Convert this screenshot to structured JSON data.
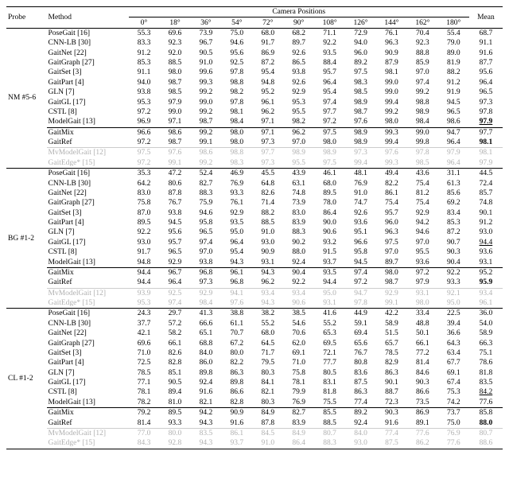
{
  "header": {
    "probe": "Probe",
    "method": "Method",
    "camera_header": "Camera Positions",
    "angles": [
      "0°",
      "18°",
      "36°",
      "54°",
      "72°",
      "90°",
      "108°",
      "126°",
      "144°",
      "162°",
      "180°"
    ],
    "mean": "Mean"
  },
  "groups": [
    {
      "probe_label": "NM #5-6",
      "blocks": [
        {
          "rows": [
            {
              "method": "PoseGait [16]",
              "vals": [
                "55.3",
                "69.6",
                "73.9",
                "75.0",
                "68.0",
                "68.2",
                "71.1",
                "72.9",
                "76.1",
                "70.4",
                "55.4"
              ],
              "mean": "68.7"
            },
            {
              "method": "CNN-LB [30]",
              "vals": [
                "83.3",
                "92.3",
                "96.7",
                "94.6",
                "91.7",
                "89.7",
                "92.2",
                "94.0",
                "96.3",
                "92.3",
                "79.0"
              ],
              "mean": "91.1"
            },
            {
              "method": "GaitNet [22]",
              "vals": [
                "91.2",
                "92.0",
                "90.5",
                "95.6",
                "86.9",
                "92.6",
                "93.5",
                "96.0",
                "90.9",
                "88.8",
                "89.0"
              ],
              "mean": "91.6"
            },
            {
              "method": "GaitGraph [27]",
              "vals": [
                "85.3",
                "88.5",
                "91.0",
                "92.5",
                "87.2",
                "86.5",
                "88.4",
                "89.2",
                "87.9",
                "85.9",
                "81.9"
              ],
              "mean": "87.7"
            },
            {
              "method": "GaitSet [3]",
              "vals": [
                "91.1",
                "98.0",
                "99.6",
                "97.8",
                "95.4",
                "93.8",
                "95.7",
                "97.5",
                "98.1",
                "97.0",
                "88.2"
              ],
              "mean": "95.6"
            },
            {
              "method": "GaitPart [4]",
              "vals": [
                "94.0",
                "98.7",
                "99.3",
                "98.8",
                "94.8",
                "92.6",
                "96.4",
                "98.3",
                "99.0",
                "97.4",
                "91.2"
              ],
              "mean": "96.4"
            },
            {
              "method": "GLN [7]",
              "vals": [
                "93.8",
                "98.5",
                "99.2",
                "98.2",
                "95.2",
                "92.9",
                "95.4",
                "98.5",
                "99.0",
                "99.2",
                "91.9"
              ],
              "mean": "96.5"
            },
            {
              "method": "GaitGL [17]",
              "vals": [
                "95.3",
                "97.9",
                "99.0",
                "97.8",
                "96.1",
                "95.3",
                "97.4",
                "98.9",
                "99.4",
                "98.8",
                "94.5"
              ],
              "mean": "97.3"
            },
            {
              "method": "CSTL [8]",
              "vals": [
                "97.2",
                "99.0",
                "99.2",
                "98.1",
                "96.2",
                "95.5",
                "97.7",
                "98.7",
                "99.2",
                "98.9",
                "96.5"
              ],
              "mean": "97.8"
            },
            {
              "method": "ModelGait [13]",
              "vals": [
                "96.9",
                "97.1",
                "98.7",
                "98.4",
                "97.1",
                "98.2",
                "97.2",
                "97.6",
                "98.0",
                "98.4",
                "98.6"
              ],
              "mean": "97.9",
              "mean_style": "bold underline"
            }
          ]
        },
        {
          "rows": [
            {
              "method": "GaitMix",
              "vals": [
                "96.6",
                "98.6",
                "99.2",
                "98.0",
                "97.1",
                "96.2",
                "97.5",
                "98.9",
                "99.3",
                "99.0",
                "94.7"
              ],
              "mean": "97.7"
            },
            {
              "method": "GaitRef",
              "vals": [
                "97.2",
                "98.7",
                "99.1",
                "98.0",
                "97.3",
                "97.0",
                "98.0",
                "98.9",
                "99.4",
                "99.8",
                "96.4"
              ],
              "mean": "98.1",
              "mean_style": "bold"
            }
          ]
        },
        {
          "gray": true,
          "rows": [
            {
              "method": "MvModelGait [12]",
              "vals": [
                "97.5",
                "97.6",
                "98.6",
                "98.8",
                "97.7",
                "98.9",
                "98.9",
                "97.3",
                "97.6",
                "97.8",
                "97.9"
              ],
              "mean": "98.1"
            },
            {
              "method": "GaitEdge* [15]",
              "vals": [
                "97.2",
                "99.1",
                "99.2",
                "98.3",
                "97.3",
                "95.5",
                "97.5",
                "99.4",
                "99.3",
                "98.5",
                "96.4"
              ],
              "mean": "97.9"
            }
          ]
        }
      ]
    },
    {
      "probe_label": "BG #1-2",
      "blocks": [
        {
          "rows": [
            {
              "method": "PoseGait [16]",
              "vals": [
                "35.3",
                "47.2",
                "52.4",
                "46.9",
                "45.5",
                "43.9",
                "46.1",
                "48.1",
                "49.4",
                "43.6",
                "31.1"
              ],
              "mean": "44.5"
            },
            {
              "method": "CNN-LB [30]",
              "vals": [
                "64.2",
                "80.6",
                "82.7",
                "76.9",
                "64.8",
                "63.1",
                "68.0",
                "76.9",
                "82.2",
                "75.4",
                "61.3"
              ],
              "mean": "72.4"
            },
            {
              "method": "GaitNet [22]",
              "vals": [
                "83.0",
                "87.8",
                "88.3",
                "93.3",
                "82.6",
                "74.8",
                "89.5",
                "91.0",
                "86.1",
                "81.2",
                "85.6"
              ],
              "mean": "85.7"
            },
            {
              "method": "GaitGraph [27]",
              "vals": [
                "75.8",
                "76.7",
                "75.9",
                "76.1",
                "71.4",
                "73.9",
                "78.0",
                "74.7",
                "75.4",
                "75.4",
                "69.2"
              ],
              "mean": "74.8"
            },
            {
              "method": "GaitSet [3]",
              "vals": [
                "87.0",
                "93.8",
                "94.6",
                "92.9",
                "88.2",
                "83.0",
                "86.4",
                "92.6",
                "95.7",
                "92.9",
                "83.4"
              ],
              "mean": "90.1"
            },
            {
              "method": "GaitPart [4]",
              "vals": [
                "89.5",
                "94.5",
                "95.8",
                "93.5",
                "88.5",
                "83.9",
                "90.0",
                "93.6",
                "96.0",
                "94.2",
                "85.3"
              ],
              "mean": "91.2"
            },
            {
              "method": "GLN [7]",
              "vals": [
                "92.2",
                "95.6",
                "96.5",
                "95.0",
                "91.0",
                "88.3",
                "90.6",
                "95.1",
                "96.3",
                "94.6",
                "87.2"
              ],
              "mean": "93.0"
            },
            {
              "method": "GaitGL [17]",
              "vals": [
                "93.0",
                "95.7",
                "97.4",
                "96.4",
                "93.0",
                "90.2",
                "93.2",
                "96.6",
                "97.5",
                "97.0",
                "90.7"
              ],
              "mean": "94.4",
              "mean_style": "underline"
            },
            {
              "method": "CSTL [8]",
              "vals": [
                "91.7",
                "96.5",
                "97.0",
                "95.4",
                "90.9",
                "88.0",
                "91.5",
                "95.8",
                "97.0",
                "95.5",
                "90.3"
              ],
              "mean": "93.6"
            },
            {
              "method": "ModelGait [13]",
              "vals": [
                "94.8",
                "92.9",
                "93.8",
                "94.3",
                "93.1",
                "92.4",
                "93.7",
                "94.5",
                "89.7",
                "93.6",
                "90.4"
              ],
              "mean": "93.1"
            }
          ]
        },
        {
          "rows": [
            {
              "method": "GaitMix",
              "vals": [
                "94.4",
                "96.7",
                "96.8",
                "96.1",
                "94.3",
                "90.4",
                "93.5",
                "97.4",
                "98.0",
                "97.2",
                "92.2"
              ],
              "mean": "95.2"
            },
            {
              "method": "GaitRef",
              "vals": [
                "94.4",
                "96.4",
                "97.3",
                "96.8",
                "96.2",
                "92.2",
                "94.4",
                "97.2",
                "98.7",
                "97.9",
                "93.3"
              ],
              "mean": "95.9",
              "mean_style": "bold"
            }
          ]
        },
        {
          "gray": true,
          "rows": [
            {
              "method": "MvModelGait [12]",
              "vals": [
                "93.9",
                "92.5",
                "92.9",
                "94.1",
                "93.4",
                "93.4",
                "95.0",
                "94.7",
                "92.9",
                "93.1",
                "92.1"
              ],
              "mean": "93.4"
            },
            {
              "method": "GaitEdge* [15]",
              "vals": [
                "95.3",
                "97.4",
                "98.4",
                "97.6",
                "94.3",
                "90.6",
                "93.1",
                "97.8",
                "99.1",
                "98.0",
                "95.0"
              ],
              "mean": "96.1"
            }
          ]
        }
      ]
    },
    {
      "probe_label": "CL #1-2",
      "blocks": [
        {
          "rows": [
            {
              "method": "PoseGait [16]",
              "vals": [
                "24.3",
                "29.7",
                "41.3",
                "38.8",
                "38.2",
                "38.5",
                "41.6",
                "44.9",
                "42.2",
                "33.4",
                "22.5"
              ],
              "mean": "36.0"
            },
            {
              "method": "CNN-LB [30]",
              "vals": [
                "37.7",
                "57.2",
                "66.6",
                "61.1",
                "55.2",
                "54.6",
                "55.2",
                "59.1",
                "58.9",
                "48.8",
                "39.4"
              ],
              "mean": "54.0"
            },
            {
              "method": "GaitNet [22]",
              "vals": [
                "42.1",
                "58.2",
                "65.1",
                "70.7",
                "68.0",
                "70.6",
                "65.3",
                "69.4",
                "51.5",
                "50.1",
                "36.6"
              ],
              "mean": "58.9"
            },
            {
              "method": "GaitGraph [27]",
              "vals": [
                "69.6",
                "66.1",
                "68.8",
                "67.2",
                "64.5",
                "62.0",
                "69.5",
                "65.6",
                "65.7",
                "66.1",
                "64.3"
              ],
              "mean": "66.3"
            },
            {
              "method": "GaitSet [3]",
              "vals": [
                "71.0",
                "82.6",
                "84.0",
                "80.0",
                "71.7",
                "69.1",
                "72.1",
                "76.7",
                "78.5",
                "77.2",
                "63.4"
              ],
              "mean": "75.1"
            },
            {
              "method": "GaitPart [4]",
              "vals": [
                "72.5",
                "82.8",
                "86.0",
                "82.2",
                "79.5",
                "71.0",
                "77.7",
                "80.8",
                "82.9",
                "81.4",
                "67.7"
              ],
              "mean": "78.6"
            },
            {
              "method": "GLN [7]",
              "vals": [
                "78.5",
                "85.1",
                "89.8",
                "86.3",
                "80.3",
                "75.8",
                "80.5",
                "83.6",
                "86.3",
                "84.6",
                "69.1"
              ],
              "mean": "81.8"
            },
            {
              "method": "GaitGL [17]",
              "vals": [
                "77.1",
                "90.5",
                "92.4",
                "89.8",
                "84.1",
                "78.1",
                "83.1",
                "87.5",
                "90.1",
                "90.3",
                "67.4"
              ],
              "mean": "83.5"
            },
            {
              "method": "CSTL [8]",
              "vals": [
                "78.1",
                "89.4",
                "91.6",
                "86.6",
                "82.1",
                "79.9",
                "81.8",
                "86.3",
                "88.7",
                "86.6",
                "75.3"
              ],
              "mean": "84.2",
              "mean_style": "underline"
            },
            {
              "method": "ModelGait [13]",
              "vals": [
                "78.2",
                "81.0",
                "82.1",
                "82.8",
                "80.3",
                "76.9",
                "75.5",
                "77.4",
                "72.3",
                "73.5",
                "74.2"
              ],
              "mean": "77.6"
            }
          ]
        },
        {
          "rows": [
            {
              "method": "GaitMix",
              "vals": [
                "79.2",
                "89.5",
                "94.2",
                "90.9",
                "84.9",
                "82.7",
                "85.5",
                "89.2",
                "90.3",
                "86.9",
                "73.7"
              ],
              "mean": "85.8"
            },
            {
              "method": "GaitRef",
              "vals": [
                "81.4",
                "93.3",
                "94.3",
                "91.6",
                "87.8",
                "83.9",
                "88.5",
                "92.4",
                "91.6",
                "89.1",
                "75.0"
              ],
              "mean": "88.0",
              "mean_style": "bold"
            }
          ]
        },
        {
          "gray": true,
          "rows": [
            {
              "method": "MvModelGait [12]",
              "vals": [
                "77.0",
                "80.0",
                "83.5",
                "86.1",
                "84.5",
                "84.9",
                "80.7",
                "84.0",
                "77.4",
                "77.6",
                "76.9"
              ],
              "mean": "80.7"
            },
            {
              "method": "GaitEdge* [15]",
              "vals": [
                "84.3",
                "92.8",
                "94.3",
                "93.7",
                "91.0",
                "86.4",
                "88.3",
                "93.0",
                "87.5",
                "86.2",
                "77.6"
              ],
              "mean": "88.6"
            }
          ]
        }
      ]
    }
  ]
}
